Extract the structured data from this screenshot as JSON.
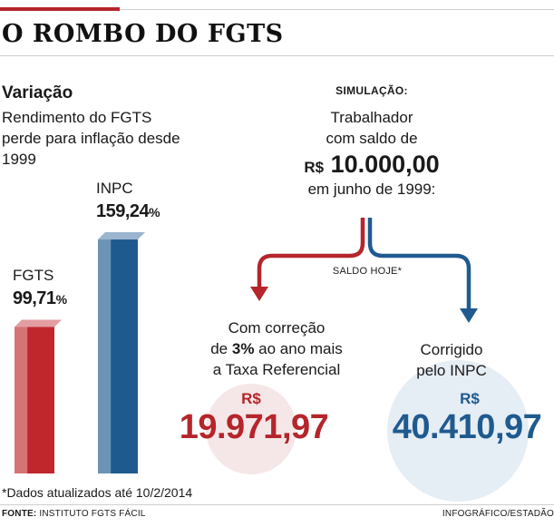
{
  "headline": "O ROMBO DO FGTS",
  "variacao": {
    "title": "Variação",
    "subtitle": "Rendimento do FGTS perde para inflação desde 1999"
  },
  "chart_data": {
    "type": "bar",
    "categories": [
      "FGTS",
      "INPC"
    ],
    "values": [
      99.71,
      159.24
    ],
    "value_labels": [
      "99,71",
      "159,24"
    ],
    "unit": "%",
    "colors": [
      "#c0272d",
      "#1f5a8f"
    ]
  },
  "simulacao": {
    "title": "SIMULAÇÃO:",
    "line1": "Trabalhador",
    "line2": "com saldo de",
    "currency": "R$",
    "amount": "10.000,00",
    "line3": "em junho de 1999:",
    "saldo_hoje": "SALDO HOJE*"
  },
  "correcao": {
    "line1": "Com correção",
    "line2_pre": "de ",
    "line2_bold": "3%",
    "line2_post": " ao ano mais",
    "line3": "a Taxa Referencial",
    "currency": "R$",
    "value": "19.971,97",
    "color": "#b5252b"
  },
  "inpc": {
    "line1": "Corrigido",
    "line2": "pelo INPC",
    "currency": "R$",
    "value": "40.410,97",
    "color": "#1f5a8f"
  },
  "footnote": "*Dados atualizados até 10/2/2014",
  "source_label": "FONTE:",
  "source_text": " INSTITUTO FGTS FÁCIL",
  "credit": "INFOGRÁFICO/ESTADÃO"
}
